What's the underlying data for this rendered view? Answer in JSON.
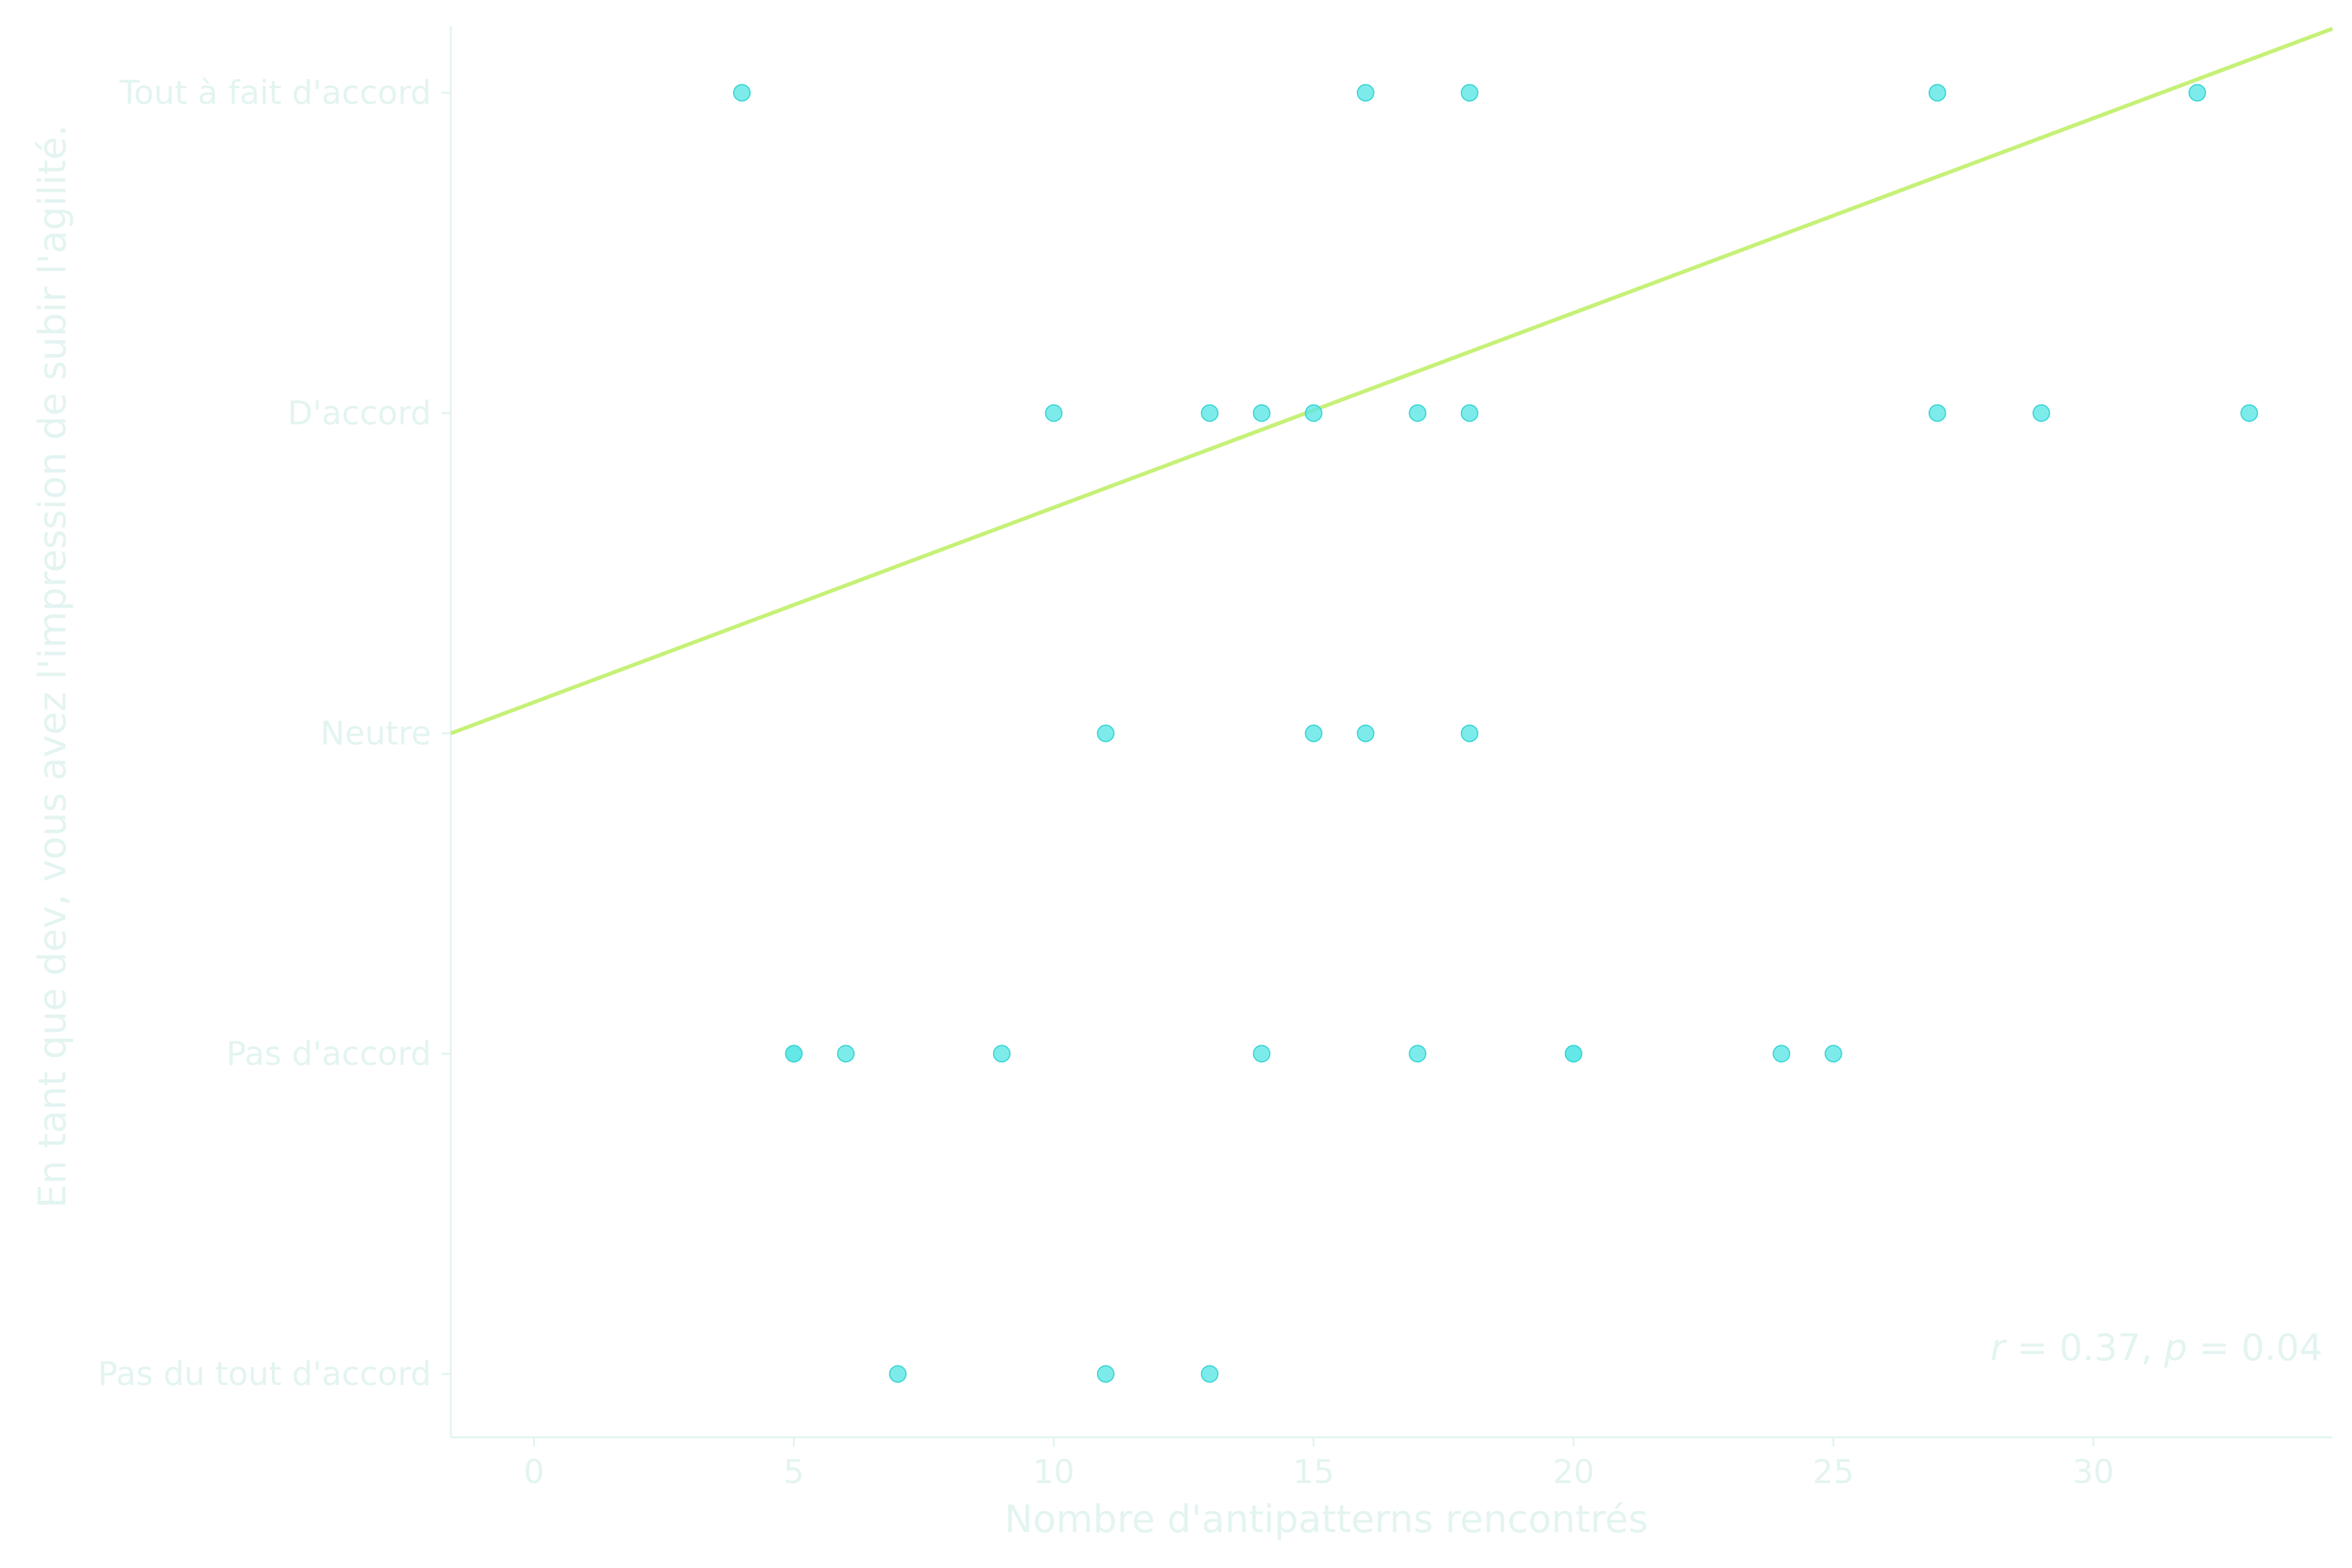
{
  "chart_data": {
    "type": "scatter",
    "xlabel": "Nombre d'antipatterns rencontrés",
    "ylabel": "En tant que dev, vous avez l'impression de subir l'agilité.",
    "xlim": [
      -1.6,
      34.6
    ],
    "x_ticks": [
      0,
      5,
      10,
      15,
      20,
      25,
      30
    ],
    "y_categories": [
      "Pas du tout d'accord",
      "Pas d'accord",
      "Neutre",
      "D'accord",
      "Tout à fait d'accord"
    ],
    "points": [
      {
        "x": 4,
        "y": "Tout à fait d'accord"
      },
      {
        "x": 16,
        "y": "Tout à fait d'accord"
      },
      {
        "x": 18,
        "y": "Tout à fait d'accord"
      },
      {
        "x": 27,
        "y": "Tout à fait d'accord"
      },
      {
        "x": 32,
        "y": "Tout à fait d'accord"
      },
      {
        "x": 10,
        "y": "D'accord"
      },
      {
        "x": 13,
        "y": "D'accord"
      },
      {
        "x": 14,
        "y": "D'accord"
      },
      {
        "x": 15,
        "y": "D'accord"
      },
      {
        "x": 17,
        "y": "D'accord"
      },
      {
        "x": 18,
        "y": "D'accord"
      },
      {
        "x": 27,
        "y": "D'accord"
      },
      {
        "x": 29,
        "y": "D'accord"
      },
      {
        "x": 33,
        "y": "D'accord"
      },
      {
        "x": 11,
        "y": "Neutre"
      },
      {
        "x": 15,
        "y": "Neutre"
      },
      {
        "x": 16,
        "y": "Neutre"
      },
      {
        "x": 18,
        "y": "Neutre"
      },
      {
        "x": 5,
        "y": "Pas d'accord"
      },
      {
        "x": 5,
        "y": "Pas d'accord"
      },
      {
        "x": 6,
        "y": "Pas d'accord"
      },
      {
        "x": 9,
        "y": "Pas d'accord"
      },
      {
        "x": 14,
        "y": "Pas d'accord"
      },
      {
        "x": 17,
        "y": "Pas d'accord"
      },
      {
        "x": 20,
        "y": "Pas d'accord"
      },
      {
        "x": 20,
        "y": "Pas d'accord"
      },
      {
        "x": 24,
        "y": "Pas d'accord"
      },
      {
        "x": 25,
        "y": "Pas d'accord"
      },
      {
        "x": 7,
        "y": "Pas du tout d'accord"
      },
      {
        "x": 11,
        "y": "Pas du tout d'accord"
      },
      {
        "x": 13,
        "y": "Pas du tout d'accord"
      }
    ],
    "regression_line": {
      "x": [
        -1.6,
        34.6
      ],
      "y": [
        2.0,
        4.2
      ]
    },
    "annotation": {
      "r_label": "r",
      "r_value": "0.37",
      "p_label": "p",
      "p_value": "0.04"
    },
    "colors": {
      "points": "#5ee6e6",
      "point_edge": "#3fd6d6",
      "regression": "#c6f178",
      "text": "#e3f4f1",
      "axis": "#e3f4f1"
    },
    "grid": false,
    "legend": "none"
  }
}
